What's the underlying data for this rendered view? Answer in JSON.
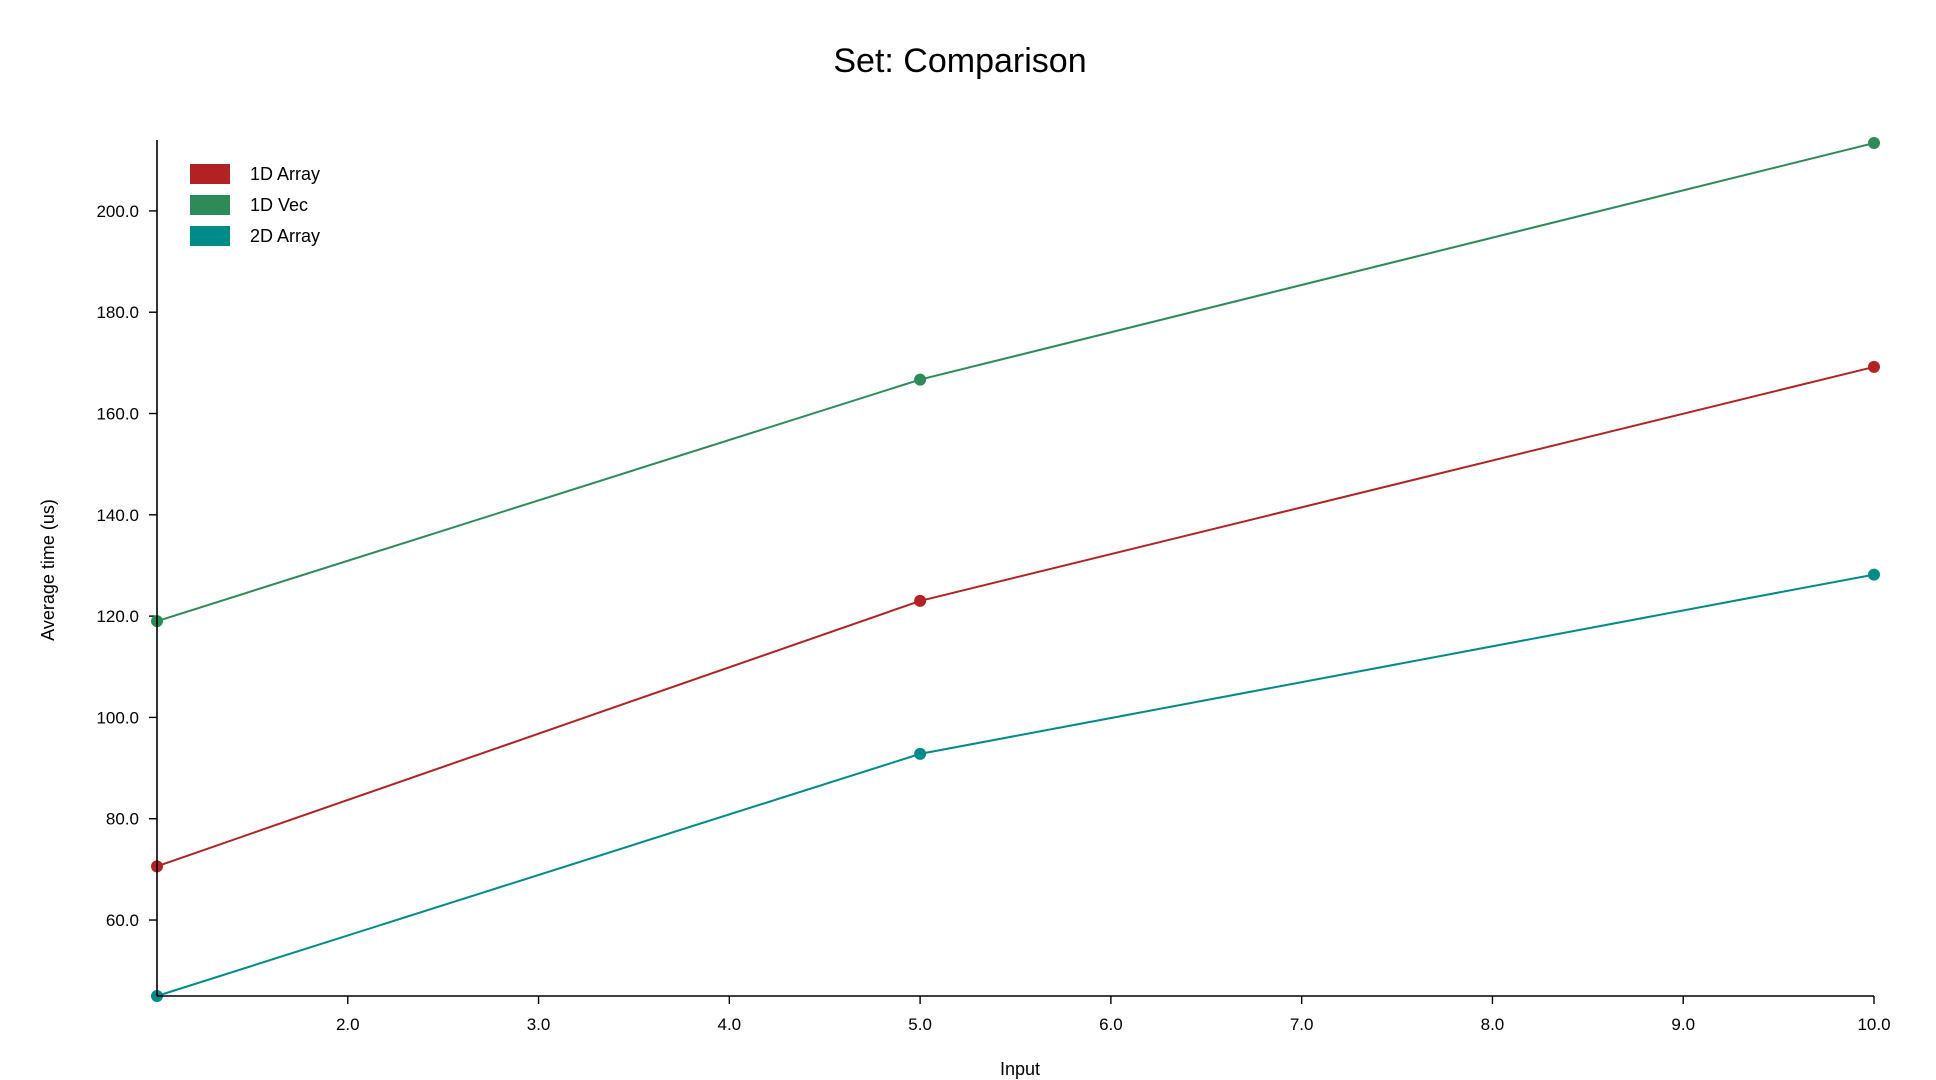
{
  "chart_data": {
    "type": "line",
    "title": "Set: Comparison",
    "xlabel": "Input",
    "ylabel": "Average time (us)",
    "xlim": [
      1.0,
      10.0
    ],
    "ylim": [
      45.0,
      214.0
    ],
    "x_ticks": [
      "2.0",
      "3.0",
      "4.0",
      "5.0",
      "6.0",
      "7.0",
      "8.0",
      "9.0",
      "10.0"
    ],
    "y_ticks": [
      "60.0",
      "80.0",
      "100.0",
      "120.0",
      "140.0",
      "160.0",
      "180.0",
      "200.0"
    ],
    "grid": false,
    "legend_position": "top-left",
    "series": [
      {
        "name": "1D Array",
        "color": "#b22222",
        "x": [
          1.0,
          5.0,
          10.0
        ],
        "y": [
          70.6,
          123.0,
          169.2
        ]
      },
      {
        "name": "1D Vec",
        "color": "#2e8b57",
        "x": [
          1.0,
          5.0,
          10.0
        ],
        "y": [
          119.0,
          166.7,
          213.4
        ]
      },
      {
        "name": "2D Array",
        "color": "#008b8b",
        "x": [
          1.0,
          5.0,
          10.0
        ],
        "y": [
          45.0,
          92.8,
          128.2
        ]
      }
    ]
  }
}
